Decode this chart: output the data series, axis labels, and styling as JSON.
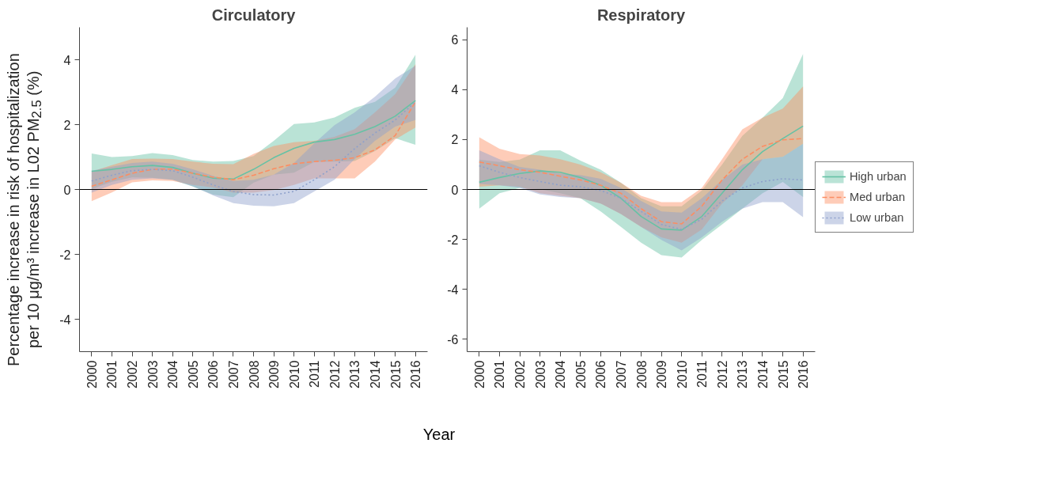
{
  "chart_data": [
    {
      "type": "line",
      "title": "Circulatory",
      "xlabel": "Year",
      "ylabel": "Percentage increase in risk of hospitalization per 10 μg/m³ increase in L02 PM$_{2.5}$ (%)",
      "x": [
        2000,
        2001,
        2002,
        2003,
        2004,
        2005,
        2006,
        2007,
        2008,
        2009,
        2010,
        2011,
        2012,
        2013,
        2014,
        2015,
        2016
      ],
      "xlim": [
        1999.4,
        2016.6
      ],
      "xticks": [
        2000,
        2001,
        2002,
        2003,
        2004,
        2005,
        2006,
        2007,
        2008,
        2009,
        2010,
        2011,
        2012,
        2013,
        2014,
        2015,
        2016
      ],
      "ylim": [
        -5,
        5
      ],
      "yticks": [
        -4,
        -2,
        0,
        2,
        4
      ],
      "grid": false,
      "legend": false,
      "ref_lines": [
        {
          "axis": "y",
          "value": 0,
          "color": "#000000"
        }
      ],
      "series": [
        {
          "color": "#66c2a5",
          "line_style": "solid",
          "values": [
            0.56,
            0.62,
            0.7,
            0.74,
            0.68,
            0.5,
            0.35,
            0.32,
            0.62,
            0.98,
            1.27,
            1.46,
            1.54,
            1.7,
            1.94,
            2.26,
            2.74
          ],
          "lower": [
            0.01,
            0.24,
            0.37,
            0.36,
            0.3,
            0.09,
            -0.16,
            -0.24,
            0.21,
            0.46,
            0.52,
            0.85,
            0.86,
            0.88,
            1.18,
            1.58,
            1.38
          ],
          "upper": [
            1.11,
            1.0,
            1.03,
            1.12,
            1.06,
            0.91,
            0.86,
            0.88,
            1.03,
            1.5,
            2.02,
            2.07,
            2.22,
            2.52,
            2.7,
            3.14,
            4.15
          ]
        },
        {
          "color": "#fc8d62",
          "line_style": "dashed",
          "values": [
            0.1,
            0.3,
            0.5,
            0.62,
            0.63,
            0.5,
            0.38,
            0.3,
            0.44,
            0.64,
            0.79,
            0.86,
            0.9,
            0.98,
            1.22,
            1.66,
            2.7
          ],
          "lower": [
            -0.36,
            -0.09,
            0.22,
            0.28,
            0.26,
            0.14,
            0.06,
            -0.1,
            -0.1,
            -0.02,
            0.14,
            0.34,
            0.34,
            0.34,
            0.86,
            1.54,
            1.91
          ],
          "upper": [
            0.55,
            0.75,
            0.94,
            0.95,
            0.94,
            0.86,
            0.79,
            0.78,
            1.1,
            1.34,
            1.46,
            1.5,
            1.62,
            1.86,
            2.38,
            2.94,
            3.86
          ]
        },
        {
          "color": "#8da0cb",
          "line_style": "dotted",
          "values": [
            0.26,
            0.44,
            0.58,
            0.62,
            0.58,
            0.38,
            0.14,
            -0.06,
            -0.16,
            -0.17,
            -0.06,
            0.3,
            0.7,
            1.26,
            1.74,
            2.14,
            2.7
          ],
          "lower": [
            -0.1,
            0.14,
            0.3,
            0.34,
            0.3,
            0.1,
            -0.18,
            -0.42,
            -0.5,
            -0.52,
            -0.42,
            -0.06,
            0.3,
            0.94,
            1.5,
            1.94,
            2.14
          ],
          "upper": [
            0.58,
            0.7,
            0.82,
            0.86,
            0.79,
            0.62,
            0.42,
            0.26,
            0.3,
            0.46,
            0.82,
            1.42,
            1.98,
            2.38,
            2.86,
            3.42,
            3.82
          ]
        }
      ]
    },
    {
      "type": "line",
      "title": "Respiratory",
      "x": [
        2000,
        2001,
        2002,
        2003,
        2004,
        2005,
        2006,
        2007,
        2008,
        2009,
        2010,
        2011,
        2012,
        2013,
        2014,
        2015,
        2016
      ],
      "xlim": [
        1999.4,
        2016.6
      ],
      "xticks": [
        2000,
        2001,
        2002,
        2003,
        2004,
        2005,
        2006,
        2007,
        2008,
        2009,
        2010,
        2011,
        2012,
        2013,
        2014,
        2015,
        2016
      ],
      "ylim": [
        -6.5,
        6.5
      ],
      "yticks": [
        -6,
        -4,
        -2,
        0,
        2,
        4,
        6
      ],
      "grid": false,
      "legend": "right",
      "ref_lines": [
        {
          "axis": "y",
          "value": 0,
          "color": "#000000"
        }
      ],
      "series": [
        {
          "name": "High urban",
          "color": "#66c2a5",
          "line_style": "solid",
          "values": [
            0.29,
            0.48,
            0.64,
            0.74,
            0.69,
            0.48,
            0.17,
            -0.35,
            -1.08,
            -1.58,
            -1.63,
            -1.08,
            -0.15,
            0.79,
            1.52,
            2.04,
            2.54
          ],
          "lower": [
            -0.77,
            -0.15,
            0.06,
            0.01,
            -0.15,
            -0.35,
            -0.88,
            -1.5,
            -2.13,
            -2.63,
            -2.73,
            -2.02,
            -1.4,
            -0.77,
            -0.15,
            0.3,
            -0.3
          ],
          "upper": [
            1.2,
            1.1,
            1.2,
            1.57,
            1.57,
            1.16,
            0.79,
            0.27,
            -0.35,
            -0.67,
            -0.67,
            -0.04,
            1.0,
            2.15,
            2.88,
            3.66,
            5.43
          ]
        },
        {
          "name": "Med urban",
          "color": "#fc8d62",
          "line_style": "dashed",
          "values": [
            1.1,
            0.95,
            0.79,
            0.69,
            0.53,
            0.38,
            0.17,
            -0.15,
            -0.77,
            -1.29,
            -1.38,
            -0.67,
            0.38,
            1.21,
            1.73,
            1.99,
            2.04
          ],
          "lower": [
            0.11,
            0.17,
            0.11,
            -0.15,
            -0.25,
            -0.35,
            -0.56,
            -0.98,
            -1.5,
            -1.92,
            -2.13,
            -1.6,
            -0.56,
            0.17,
            1.21,
            1.31,
            1.83
          ],
          "upper": [
            2.09,
            1.63,
            1.42,
            1.36,
            1.21,
            1.0,
            0.69,
            0.27,
            -0.25,
            -0.51,
            -0.51,
            0.06,
            1.21,
            2.41,
            2.88,
            3.24,
            4.13
          ]
        },
        {
          "name": "Low urban",
          "color": "#8da0cb",
          "line_style": "dotted",
          "values": [
            0.95,
            0.69,
            0.48,
            0.32,
            0.17,
            0.11,
            -0.04,
            -0.35,
            -0.88,
            -1.4,
            -1.6,
            -1.19,
            -0.46,
            0.06,
            0.32,
            0.43,
            0.38
          ],
          "lower": [
            0.22,
            0.17,
            0.06,
            -0.2,
            -0.3,
            -0.35,
            -0.56,
            -0.98,
            -1.5,
            -2.02,
            -2.44,
            -1.92,
            -1.29,
            -0.77,
            -0.51,
            -0.51,
            -1.11
          ],
          "upper": [
            1.57,
            1.21,
            0.9,
            0.79,
            0.64,
            0.58,
            0.43,
            0.06,
            -0.46,
            -0.88,
            -0.93,
            -0.35,
            0.38,
            1.0,
            1.21,
            1.31,
            1.83
          ]
        }
      ]
    }
  ]
}
